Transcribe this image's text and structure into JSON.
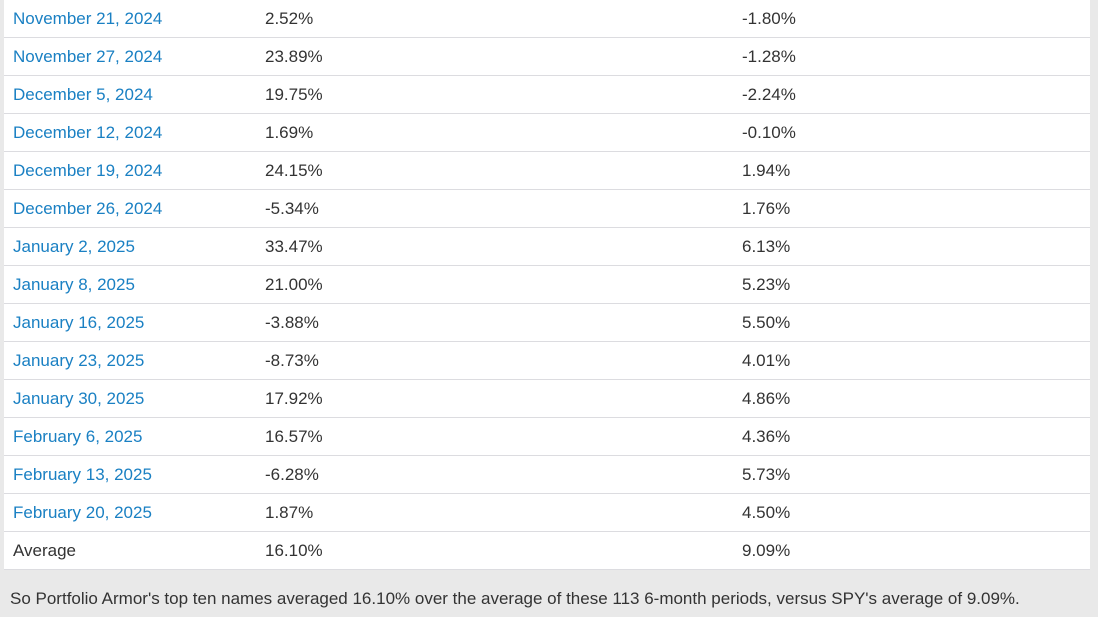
{
  "colors": {
    "page_background": "#e9e9e9",
    "table_background": "#ffffff",
    "row_border": "#dcdce0",
    "link_blue": "#1a80c3",
    "text": "#333333"
  },
  "table": {
    "columns": [
      "date",
      "top_ten_return",
      "spy_return"
    ],
    "rows": [
      {
        "date": "November 21, 2024",
        "top_ten": "2.52%",
        "spy": "-1.80%",
        "is_link": true
      },
      {
        "date": "November 27, 2024",
        "top_ten": "23.89%",
        "spy": "-1.28%",
        "is_link": true
      },
      {
        "date": "December 5, 2024",
        "top_ten": "19.75%",
        "spy": "-2.24%",
        "is_link": true
      },
      {
        "date": "December 12, 2024",
        "top_ten": "1.69%",
        "spy": "-0.10%",
        "is_link": true
      },
      {
        "date": "December 19, 2024",
        "top_ten": "24.15%",
        "spy": "1.94%",
        "is_link": true
      },
      {
        "date": "December 26, 2024",
        "top_ten": "-5.34%",
        "spy": "1.76%",
        "is_link": true
      },
      {
        "date": "January 2, 2025",
        "top_ten": "33.47%",
        "spy": "6.13%",
        "is_link": true
      },
      {
        "date": "January 8, 2025",
        "top_ten": "21.00%",
        "spy": "5.23%",
        "is_link": true
      },
      {
        "date": "January 16, 2025",
        "top_ten": "-3.88%",
        "spy": "5.50%",
        "is_link": true
      },
      {
        "date": "January 23, 2025",
        "top_ten": "-8.73%",
        "spy": "4.01%",
        "is_link": true
      },
      {
        "date": "January 30, 2025",
        "top_ten": "17.92%",
        "spy": "4.86%",
        "is_link": true
      },
      {
        "date": "February 6, 2025",
        "top_ten": "16.57%",
        "spy": "4.36%",
        "is_link": true
      },
      {
        "date": "February 13, 2025",
        "top_ten": "-6.28%",
        "spy": "5.73%",
        "is_link": true
      },
      {
        "date": "February 20, 2025",
        "top_ten": "1.87%",
        "spy": "4.50%",
        "is_link": true
      },
      {
        "date": "Average",
        "top_ten": "16.10%",
        "spy": "9.09%",
        "is_link": false
      }
    ]
  },
  "footer": {
    "text": "So Portfolio Armor's top ten names averaged 16.10% over the average of these 113 6-month periods, versus SPY's average of 9.09%."
  }
}
